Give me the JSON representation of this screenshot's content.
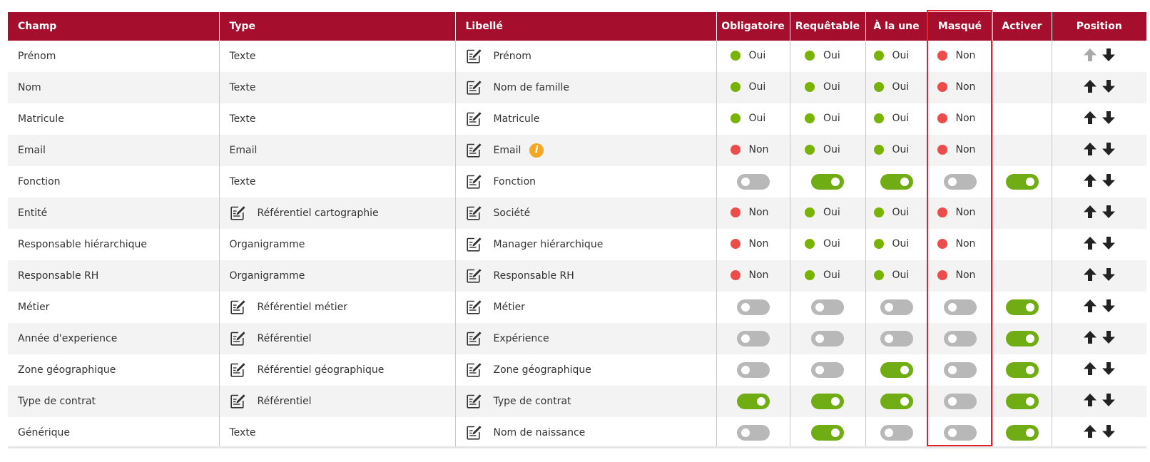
{
  "colors": {
    "header_bg": "#a50e2d",
    "header_text": "#ffffff",
    "row_alt_bg": "#f3f3f3",
    "dot_yes": "#77b300",
    "dot_no": "#ee4b4b",
    "toggle_on": "#70ad14",
    "toggle_off": "#b8b8b8",
    "highlight_border": "#e0232f",
    "info_icon": "#f5a623"
  },
  "table": {
    "headers": {
      "champ": "Champ",
      "type": "Type",
      "libelle": "Libellé",
      "obligatoire": "Obligatoire",
      "requetable": "Requêtable",
      "alaune": "À la une",
      "masque": "Masqué",
      "activer": "Activer",
      "position": "Position"
    },
    "labels": {
      "yes": "Oui",
      "no": "Non"
    },
    "rows": [
      {
        "champ": "Prénom",
        "type": "Texte",
        "type_editable": false,
        "libelle": "Prénom",
        "info": false,
        "obligatoire": {
          "kind": "status",
          "value": "yes"
        },
        "requetable": {
          "kind": "status",
          "value": "yes"
        },
        "alaune": {
          "kind": "status",
          "value": "yes"
        },
        "masque": {
          "kind": "status",
          "value": "no"
        },
        "activer": null,
        "up_enabled": false
      },
      {
        "champ": "Nom",
        "type": "Texte",
        "type_editable": false,
        "libelle": "Nom de famille",
        "info": false,
        "obligatoire": {
          "kind": "status",
          "value": "yes"
        },
        "requetable": {
          "kind": "status",
          "value": "yes"
        },
        "alaune": {
          "kind": "status",
          "value": "yes"
        },
        "masque": {
          "kind": "status",
          "value": "no"
        },
        "activer": null,
        "up_enabled": true
      },
      {
        "champ": "Matricule",
        "type": "Texte",
        "type_editable": false,
        "libelle": "Matricule",
        "info": false,
        "obligatoire": {
          "kind": "status",
          "value": "yes"
        },
        "requetable": {
          "kind": "status",
          "value": "yes"
        },
        "alaune": {
          "kind": "status",
          "value": "yes"
        },
        "masque": {
          "kind": "status",
          "value": "no"
        },
        "activer": null,
        "up_enabled": true
      },
      {
        "champ": "Email",
        "type": "Email",
        "type_editable": false,
        "libelle": "Email",
        "info": true,
        "obligatoire": {
          "kind": "status",
          "value": "no"
        },
        "requetable": {
          "kind": "status",
          "value": "yes"
        },
        "alaune": {
          "kind": "status",
          "value": "yes"
        },
        "masque": {
          "kind": "status",
          "value": "no"
        },
        "activer": null,
        "up_enabled": true
      },
      {
        "champ": "Fonction",
        "type": "Texte",
        "type_editable": false,
        "libelle": "Fonction",
        "info": false,
        "obligatoire": {
          "kind": "toggle",
          "on": false
        },
        "requetable": {
          "kind": "toggle",
          "on": true
        },
        "alaune": {
          "kind": "toggle",
          "on": true
        },
        "masque": {
          "kind": "toggle",
          "on": false
        },
        "activer": {
          "kind": "toggle",
          "on": true
        },
        "up_enabled": true
      },
      {
        "champ": "Entité",
        "type": "Référentiel cartographie",
        "type_editable": true,
        "libelle": "Société",
        "info": false,
        "obligatoire": {
          "kind": "status",
          "value": "no"
        },
        "requetable": {
          "kind": "status",
          "value": "yes"
        },
        "alaune": {
          "kind": "status",
          "value": "yes"
        },
        "masque": {
          "kind": "status",
          "value": "no"
        },
        "activer": null,
        "up_enabled": true
      },
      {
        "champ": "Responsable hiérarchique",
        "type": "Organigramme",
        "type_editable": false,
        "libelle": "Manager hiérarchique",
        "info": false,
        "obligatoire": {
          "kind": "status",
          "value": "no"
        },
        "requetable": {
          "kind": "status",
          "value": "yes"
        },
        "alaune": {
          "kind": "status",
          "value": "yes"
        },
        "masque": {
          "kind": "status",
          "value": "no"
        },
        "activer": null,
        "up_enabled": true
      },
      {
        "champ": "Responsable RH",
        "type": "Organigramme",
        "type_editable": false,
        "libelle": "Responsable RH",
        "info": false,
        "obligatoire": {
          "kind": "status",
          "value": "no"
        },
        "requetable": {
          "kind": "status",
          "value": "yes"
        },
        "alaune": {
          "kind": "status",
          "value": "yes"
        },
        "masque": {
          "kind": "status",
          "value": "no"
        },
        "activer": null,
        "up_enabled": true
      },
      {
        "champ": "Métier",
        "type": "Référentiel métier",
        "type_editable": true,
        "libelle": "Métier",
        "info": false,
        "obligatoire": {
          "kind": "toggle",
          "on": false
        },
        "requetable": {
          "kind": "toggle",
          "on": false
        },
        "alaune": {
          "kind": "toggle",
          "on": false
        },
        "masque": {
          "kind": "toggle",
          "on": false
        },
        "activer": {
          "kind": "toggle",
          "on": true
        },
        "up_enabled": true
      },
      {
        "champ": "Année d'experience",
        "type": "Référentiel",
        "type_editable": true,
        "libelle": "Expérience",
        "info": false,
        "obligatoire": {
          "kind": "toggle",
          "on": false
        },
        "requetable": {
          "kind": "toggle",
          "on": false
        },
        "alaune": {
          "kind": "toggle",
          "on": false
        },
        "masque": {
          "kind": "toggle",
          "on": false
        },
        "activer": {
          "kind": "toggle",
          "on": true
        },
        "up_enabled": true
      },
      {
        "champ": "Zone géographique",
        "type": "Référentiel géographique",
        "type_editable": true,
        "libelle": "Zone géographique",
        "info": false,
        "obligatoire": {
          "kind": "toggle",
          "on": false
        },
        "requetable": {
          "kind": "toggle",
          "on": false
        },
        "alaune": {
          "kind": "toggle",
          "on": true
        },
        "masque": {
          "kind": "toggle",
          "on": false
        },
        "activer": {
          "kind": "toggle",
          "on": true
        },
        "up_enabled": true
      },
      {
        "champ": "Type de contrat",
        "type": "Référentiel",
        "type_editable": true,
        "libelle": "Type de contrat",
        "info": false,
        "obligatoire": {
          "kind": "toggle",
          "on": true
        },
        "requetable": {
          "kind": "toggle",
          "on": true
        },
        "alaune": {
          "kind": "toggle",
          "on": true
        },
        "masque": {
          "kind": "toggle",
          "on": false
        },
        "activer": {
          "kind": "toggle",
          "on": true
        },
        "up_enabled": true
      },
      {
        "champ": "Générique",
        "type": "Texte",
        "type_editable": false,
        "libelle": "Nom de naissance",
        "info": false,
        "obligatoire": {
          "kind": "toggle",
          "on": false
        },
        "requetable": {
          "kind": "toggle",
          "on": true
        },
        "alaune": {
          "kind": "toggle",
          "on": false
        },
        "masque": {
          "kind": "toggle",
          "on": false
        },
        "activer": {
          "kind": "toggle",
          "on": true
        },
        "up_enabled": true
      }
    ]
  }
}
